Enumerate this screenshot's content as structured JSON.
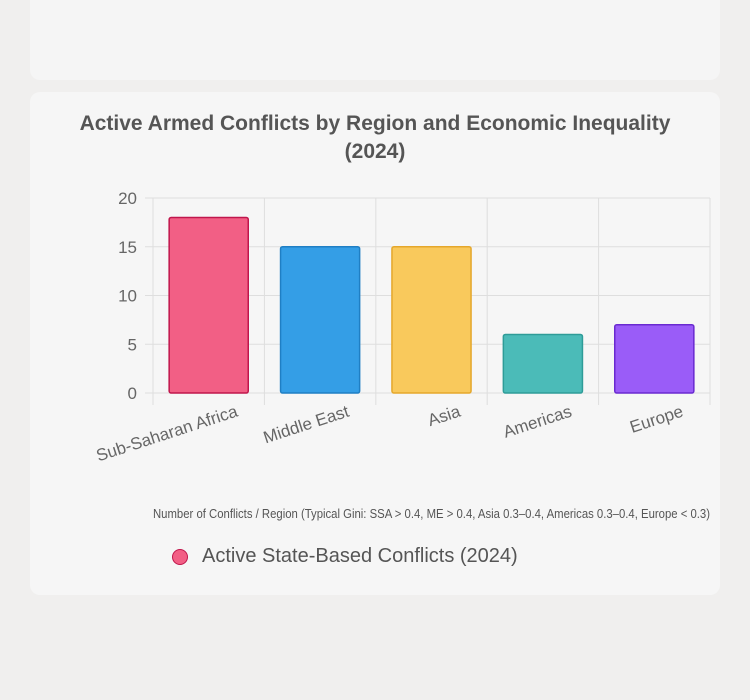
{
  "chart_data": {
    "type": "bar",
    "title_line1": "Active Armed Conflicts by Region and Economic Inequality",
    "title_line2": "(2024)",
    "categories": [
      "Sub-Saharan Africa",
      "Middle East",
      "Asia",
      "Americas",
      "Europe"
    ],
    "series": [
      {
        "name": "Active State-Based Conflicts (2024)",
        "values": [
          18,
          15,
          15,
          6,
          7
        ]
      }
    ],
    "colors": [
      "#f25f85",
      "#349ee6",
      "#f9c95c",
      "#4bbbb8",
      "#9a5cf8"
    ],
    "border_colors": [
      "#c0164c",
      "#1f7fc4",
      "#e5a72b",
      "#2e9c98",
      "#6a2ad0"
    ],
    "xlabel": "Number of Conflicts / Region (Typical Gini: SSA > 0.4, ME > 0.4, Asia 0.3–0.4, Americas 0.3–0.4, Europe < 0.3)",
    "ylabel": "",
    "ylim": [
      0,
      20
    ],
    "yticks": [
      "0",
      "5",
      "10",
      "15",
      "20"
    ],
    "legend": "bottom",
    "grid": true
  }
}
